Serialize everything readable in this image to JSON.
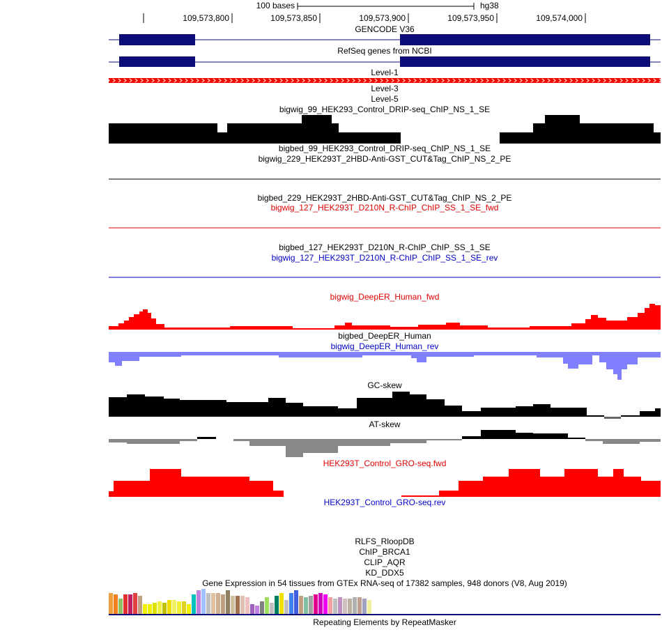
{
  "ruler": {
    "scale_label": "100 bases",
    "assembly": "hg38",
    "positions": [
      "109,573,800",
      "109,573,850",
      "109,573,900",
      "109,573,950",
      "109,574,000"
    ]
  },
  "tracks": [
    {
      "label": "GENCODE V36",
      "color": "#000000"
    },
    {
      "label": "RefSeq genes from NCBI",
      "color": "#000000"
    },
    {
      "label": "Level-1",
      "color": "#000000"
    },
    {
      "label": "Level-3",
      "color": "#000000"
    },
    {
      "label": "Level-5",
      "color": "#000000"
    },
    {
      "label": "bigwig_99_HEK293_Control_DRIP-seq_ChIP_NS_1_SE",
      "color": "#000000"
    },
    {
      "label": "bigbed_99_HEK293_Control_DRIP-seq_ChIP_NS_1_SE",
      "color": "#000000"
    },
    {
      "label": "bigwig_229_HEK293T_2HBD-Anti-GST_CUT&Tag_ChIP_NS_2_PE",
      "color": "#000000"
    },
    {
      "label": "bigbed_229_HEK293T_2HBD-Anti-GST_CUT&Tag_ChIP_NS_2_PE",
      "color": "#000000"
    },
    {
      "label": "bigwig_127_HEK293T_D210N_R-ChIP_ChIP_SS_1_SE_fwd",
      "color": "#e00000"
    },
    {
      "label": "bigbed_127_HEK293T_D210N_R-ChIP_ChIP_SS_1_SE",
      "color": "#000000"
    },
    {
      "label": "bigwig_127_HEK293T_D210N_R-ChIP_ChIP_SS_1_SE_rev",
      "color": "#0000c8"
    },
    {
      "label": "bigwig_DeepER_Human_fwd",
      "color": "#e00000"
    },
    {
      "label": "bigbed_DeepER_Human",
      "color": "#000000"
    },
    {
      "label": "bigwig_DeepER_Human_rev",
      "color": "#0000c8"
    },
    {
      "label": "GC-skew",
      "color": "#000000"
    },
    {
      "label": "AT-skew",
      "color": "#000000"
    },
    {
      "label": "HEK293T_Control_GRO-seq.fwd",
      "color": "#e00000"
    },
    {
      "label": "HEK293T_Control_GRO-seq.rev",
      "color": "#0000c8"
    },
    {
      "label": "RLFS_RloopDB",
      "color": "#000000"
    },
    {
      "label": "ChIP_BRCA1",
      "color": "#000000"
    },
    {
      "label": "CLIP_AQR",
      "color": "#000000"
    },
    {
      "label": "KD_DDX5",
      "color": "#000000"
    },
    {
      "label": "Gene Expression in 54 tissues from GTEx RNA-seq of 17382 samples, 948 donors (V8, Aug 2019)",
      "color": "#000000"
    },
    {
      "label": "Repeating Elements by RepeatMasker",
      "color": "#000000"
    }
  ]
}
